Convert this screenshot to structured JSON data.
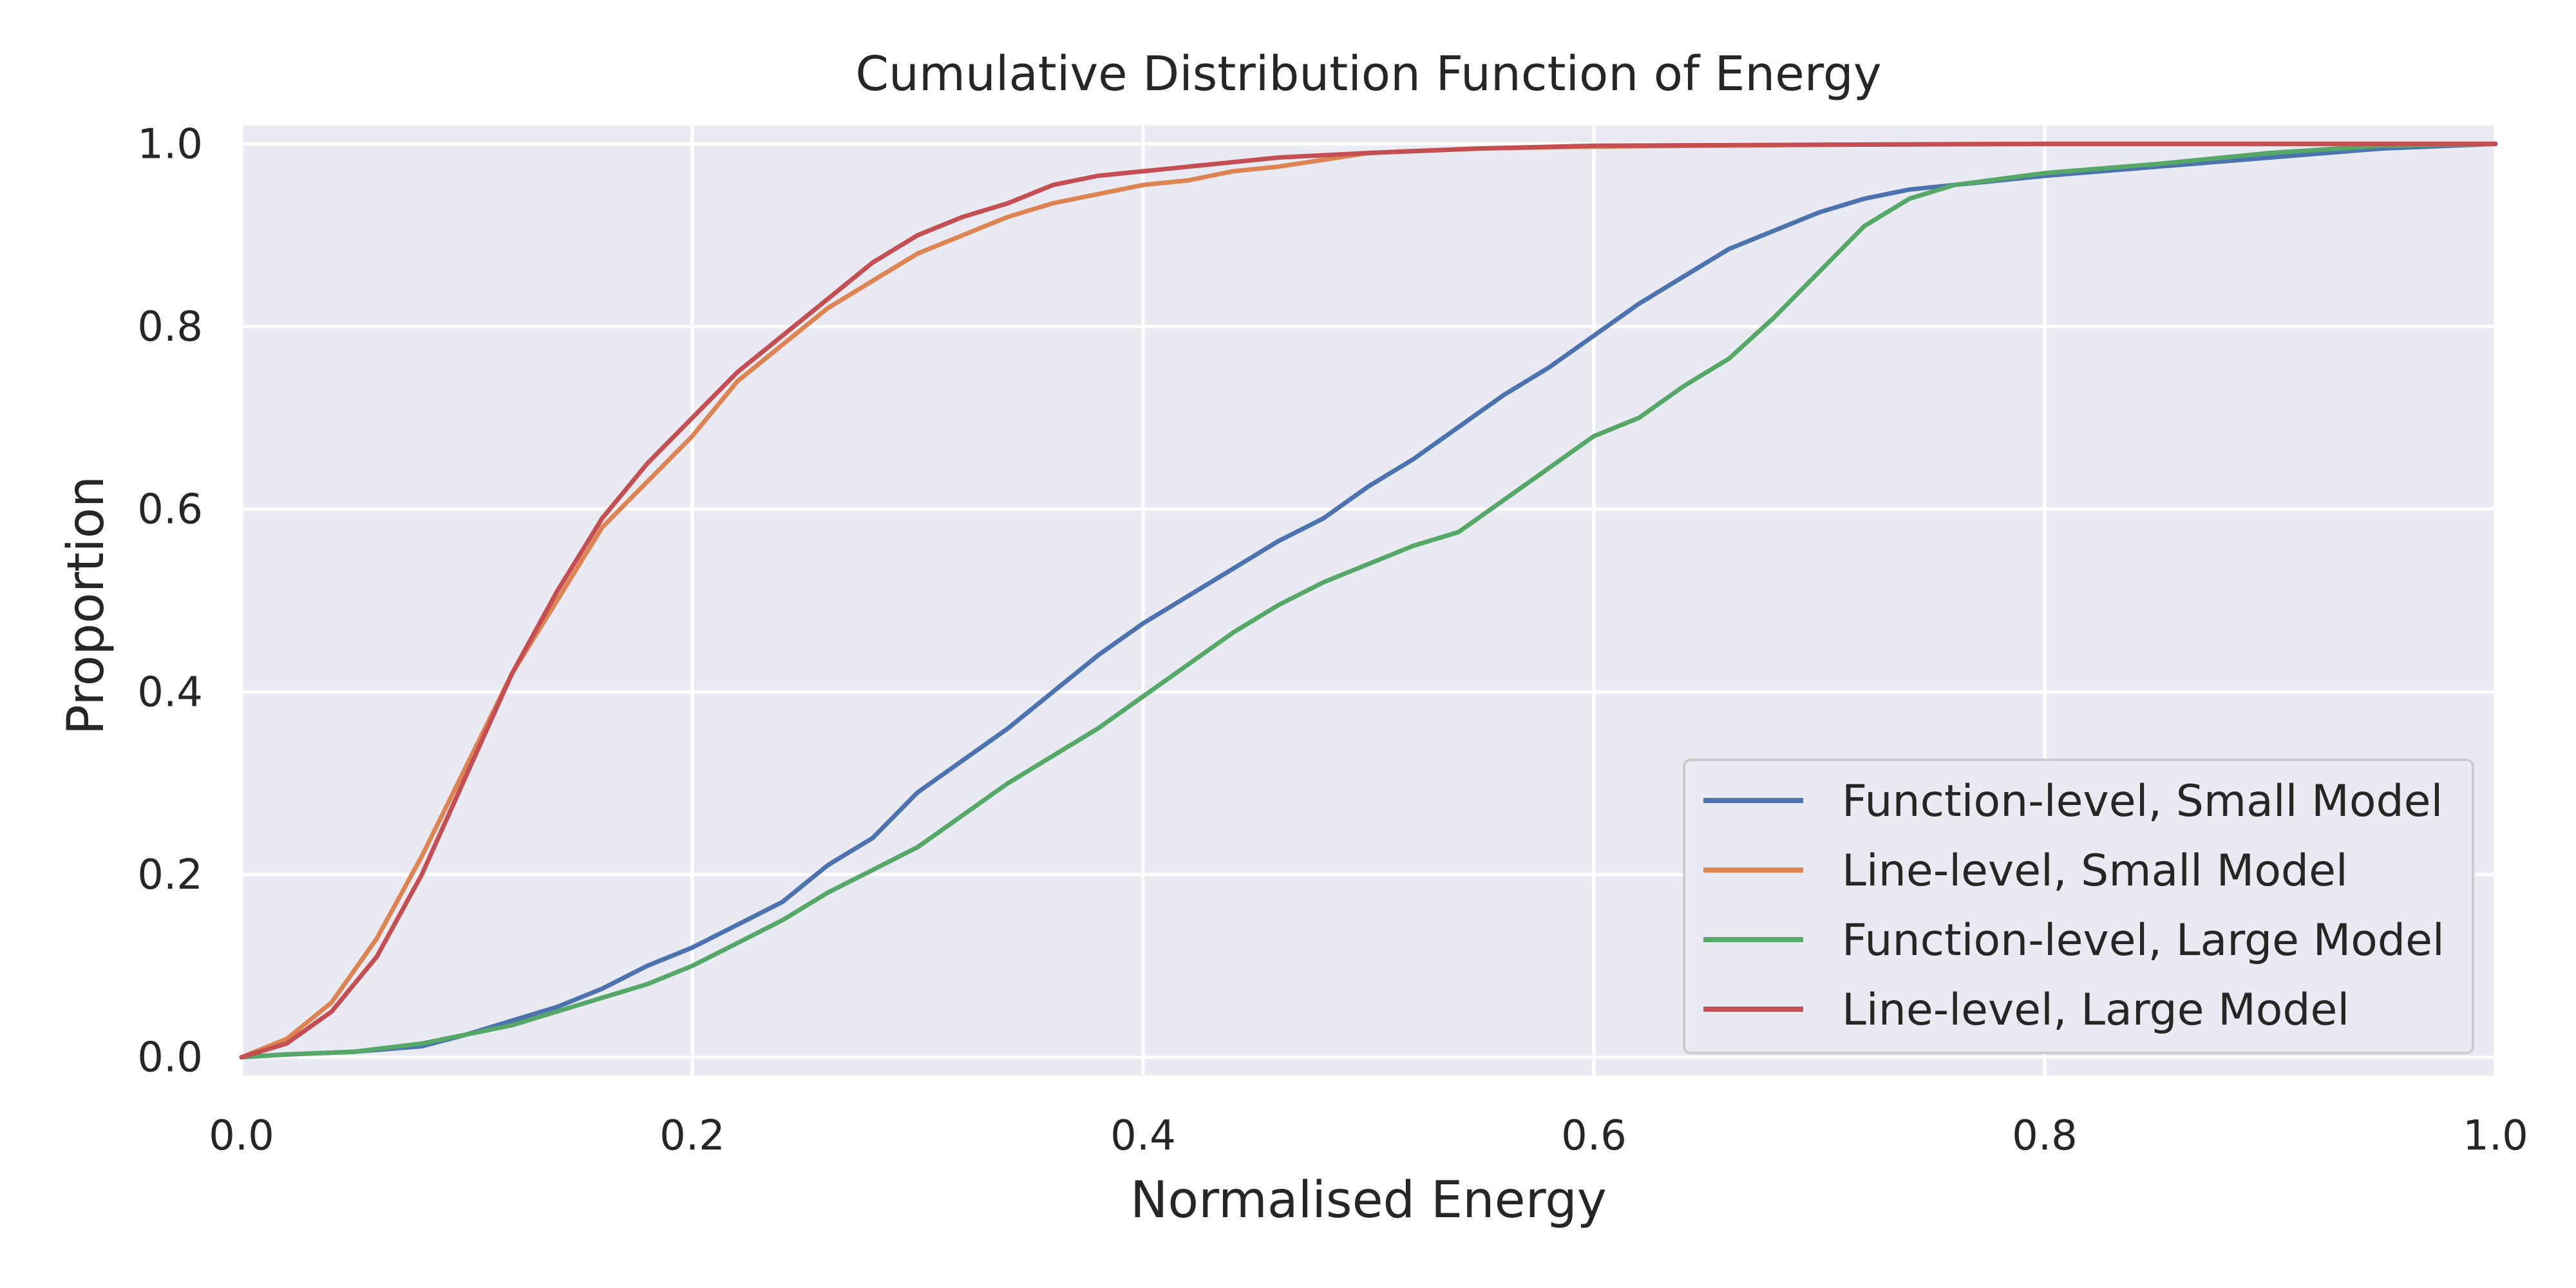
{
  "chart_data": {
    "type": "line",
    "title": "Cumulative Distribution Function of Energy",
    "xlabel": "Normalised Energy",
    "ylabel": "Proportion",
    "xlim": [
      0.0,
      1.0
    ],
    "ylim": [
      -0.02,
      1.02
    ],
    "xticks": [
      0.0,
      0.2,
      0.4,
      0.6,
      0.8,
      1.0
    ],
    "xtick_labels": [
      "0.0",
      "0.2",
      "0.4",
      "0.6",
      "0.8",
      "1.0"
    ],
    "yticks": [
      0.0,
      0.2,
      0.4,
      0.6,
      0.8,
      1.0
    ],
    "ytick_labels": [
      "0.0",
      "0.2",
      "0.4",
      "0.6",
      "0.8",
      "1.0"
    ],
    "grid": true,
    "plot_background": "#eaeaf2",
    "grid_color": "#ffffff",
    "legend_position": "lower-right",
    "series": [
      {
        "name": "Function-level, Small Model",
        "color": "#4c72b0",
        "x": [
          0.0,
          0.02,
          0.05,
          0.08,
          0.1,
          0.12,
          0.14,
          0.16,
          0.18,
          0.2,
          0.22,
          0.24,
          0.26,
          0.28,
          0.3,
          0.32,
          0.34,
          0.36,
          0.38,
          0.4,
          0.42,
          0.44,
          0.46,
          0.48,
          0.5,
          0.52,
          0.54,
          0.56,
          0.58,
          0.6,
          0.62,
          0.64,
          0.66,
          0.68,
          0.7,
          0.72,
          0.74,
          0.76,
          0.8,
          0.85,
          0.9,
          0.95,
          1.0
        ],
        "y": [
          0.0,
          0.003,
          0.006,
          0.012,
          0.025,
          0.04,
          0.055,
          0.075,
          0.1,
          0.12,
          0.145,
          0.17,
          0.21,
          0.24,
          0.29,
          0.325,
          0.36,
          0.4,
          0.44,
          0.475,
          0.505,
          0.535,
          0.565,
          0.59,
          0.625,
          0.655,
          0.69,
          0.725,
          0.755,
          0.79,
          0.825,
          0.855,
          0.885,
          0.905,
          0.925,
          0.94,
          0.95,
          0.955,
          0.965,
          0.975,
          0.985,
          0.995,
          1.0
        ]
      },
      {
        "name": "Line-level, Small Model",
        "color": "#dd8452",
        "x": [
          0.0,
          0.02,
          0.04,
          0.06,
          0.08,
          0.1,
          0.12,
          0.14,
          0.16,
          0.18,
          0.2,
          0.22,
          0.24,
          0.26,
          0.28,
          0.3,
          0.32,
          0.34,
          0.36,
          0.38,
          0.4,
          0.42,
          0.44,
          0.46,
          0.5,
          0.55,
          0.6,
          0.7,
          0.8,
          1.0
        ],
        "y": [
          0.0,
          0.02,
          0.06,
          0.13,
          0.22,
          0.32,
          0.42,
          0.5,
          0.58,
          0.63,
          0.68,
          0.74,
          0.78,
          0.82,
          0.85,
          0.88,
          0.9,
          0.92,
          0.935,
          0.945,
          0.955,
          0.96,
          0.97,
          0.975,
          0.99,
          0.995,
          0.997,
          0.999,
          1.0,
          1.0
        ]
      },
      {
        "name": "Function-level, Large Model",
        "color": "#55a868",
        "x": [
          0.0,
          0.02,
          0.05,
          0.08,
          0.1,
          0.12,
          0.14,
          0.16,
          0.18,
          0.2,
          0.22,
          0.24,
          0.26,
          0.28,
          0.3,
          0.32,
          0.34,
          0.36,
          0.38,
          0.4,
          0.42,
          0.44,
          0.46,
          0.48,
          0.5,
          0.52,
          0.54,
          0.56,
          0.58,
          0.6,
          0.62,
          0.64,
          0.66,
          0.68,
          0.7,
          0.72,
          0.74,
          0.76,
          0.8,
          0.85,
          0.9,
          0.95,
          1.0
        ],
        "y": [
          0.0,
          0.003,
          0.006,
          0.015,
          0.025,
          0.035,
          0.05,
          0.065,
          0.08,
          0.1,
          0.125,
          0.15,
          0.18,
          0.205,
          0.23,
          0.265,
          0.3,
          0.33,
          0.36,
          0.395,
          0.43,
          0.465,
          0.495,
          0.52,
          0.54,
          0.56,
          0.575,
          0.61,
          0.645,
          0.68,
          0.7,
          0.735,
          0.765,
          0.81,
          0.86,
          0.91,
          0.94,
          0.955,
          0.968,
          0.978,
          0.99,
          0.998,
          1.0
        ]
      },
      {
        "name": "Line-level, Large Model",
        "color": "#c44e52",
        "x": [
          0.0,
          0.02,
          0.04,
          0.06,
          0.08,
          0.1,
          0.12,
          0.14,
          0.16,
          0.18,
          0.2,
          0.22,
          0.24,
          0.26,
          0.28,
          0.3,
          0.32,
          0.34,
          0.36,
          0.38,
          0.4,
          0.42,
          0.44,
          0.46,
          0.5,
          0.55,
          0.6,
          0.7,
          0.8,
          1.0
        ],
        "y": [
          0.0,
          0.015,
          0.05,
          0.11,
          0.2,
          0.31,
          0.42,
          0.51,
          0.59,
          0.65,
          0.7,
          0.75,
          0.79,
          0.83,
          0.87,
          0.9,
          0.92,
          0.935,
          0.955,
          0.965,
          0.97,
          0.975,
          0.98,
          0.985,
          0.99,
          0.995,
          0.998,
          0.999,
          1.0,
          1.0
        ]
      }
    ]
  }
}
